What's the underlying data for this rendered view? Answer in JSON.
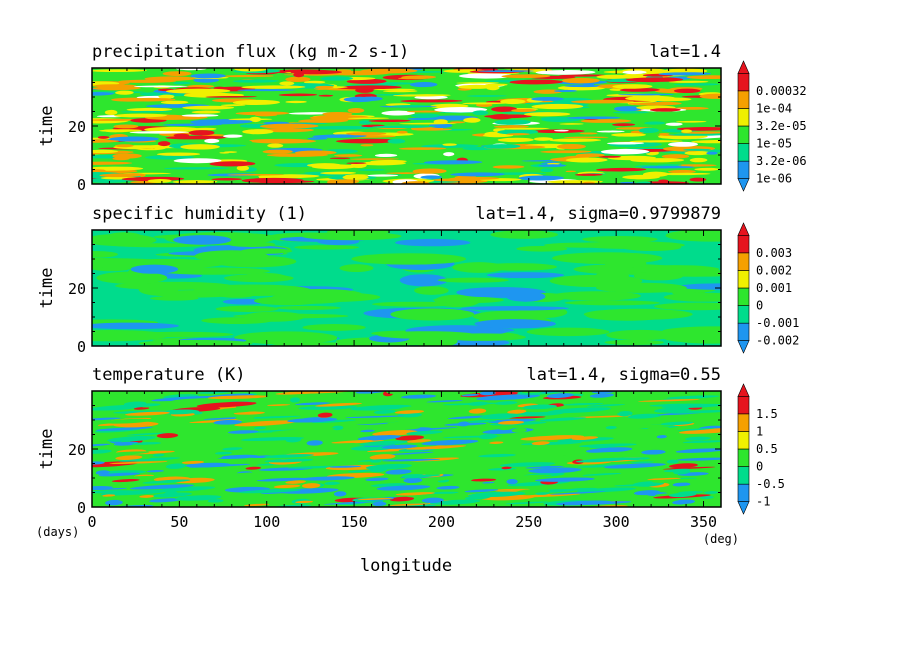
{
  "chart_data": [
    {
      "type": "heatmap",
      "title": "precipitation flux (kg m-2 s-1)",
      "annotation": "lat=1.4",
      "xlabel": "longitude",
      "ylabel": "time",
      "xlim": [
        0,
        360
      ],
      "ylim": [
        0,
        40
      ],
      "yticks": [
        0,
        20
      ],
      "colorbar": {
        "labels": [
          "1e-06",
          "3.2e-06",
          "1e-05",
          "3.2e-05",
          "1e-04",
          "0.00032"
        ],
        "colors": [
          "#1e96f0",
          "#00dc8c",
          "#2ee62e",
          "#f0f000",
          "#f5a000",
          "#e6141e"
        ],
        "extend": "both"
      }
    },
    {
      "type": "heatmap",
      "title": "specific humidity (1)",
      "annotation": "lat=1.4, sigma=0.9799879",
      "xlabel": "longitude",
      "ylabel": "time",
      "xlim": [
        0,
        360
      ],
      "ylim": [
        0,
        40
      ],
      "yticks": [
        0,
        20
      ],
      "colorbar": {
        "labels": [
          "-0.002",
          "-0.001",
          "0",
          "0.001",
          "0.002",
          "0.003"
        ],
        "colors": [
          "#1e96f0",
          "#00dc8c",
          "#2ee62e",
          "#f0f000",
          "#f5a000",
          "#e6141e"
        ],
        "extend": "both"
      }
    },
    {
      "type": "heatmap",
      "title": "temperature (K)",
      "annotation": "lat=1.4, sigma=0.55",
      "xlabel": "longitude",
      "ylabel": "time",
      "xlim": [
        0,
        360
      ],
      "ylim": [
        0,
        40
      ],
      "yticks": [
        0,
        20
      ],
      "xticks": [
        0,
        50,
        100,
        150,
        200,
        250,
        300,
        350
      ],
      "x_unit": "(deg)",
      "y_unit": "(days)",
      "colorbar": {
        "labels": [
          "-1",
          "-0.5",
          "0",
          "0.5",
          "1",
          "1.5"
        ],
        "colors": [
          "#1e96f0",
          "#00dc8c",
          "#2ee62e",
          "#f0f000",
          "#f5a000",
          "#e6141e"
        ],
        "extend": "both"
      }
    }
  ]
}
